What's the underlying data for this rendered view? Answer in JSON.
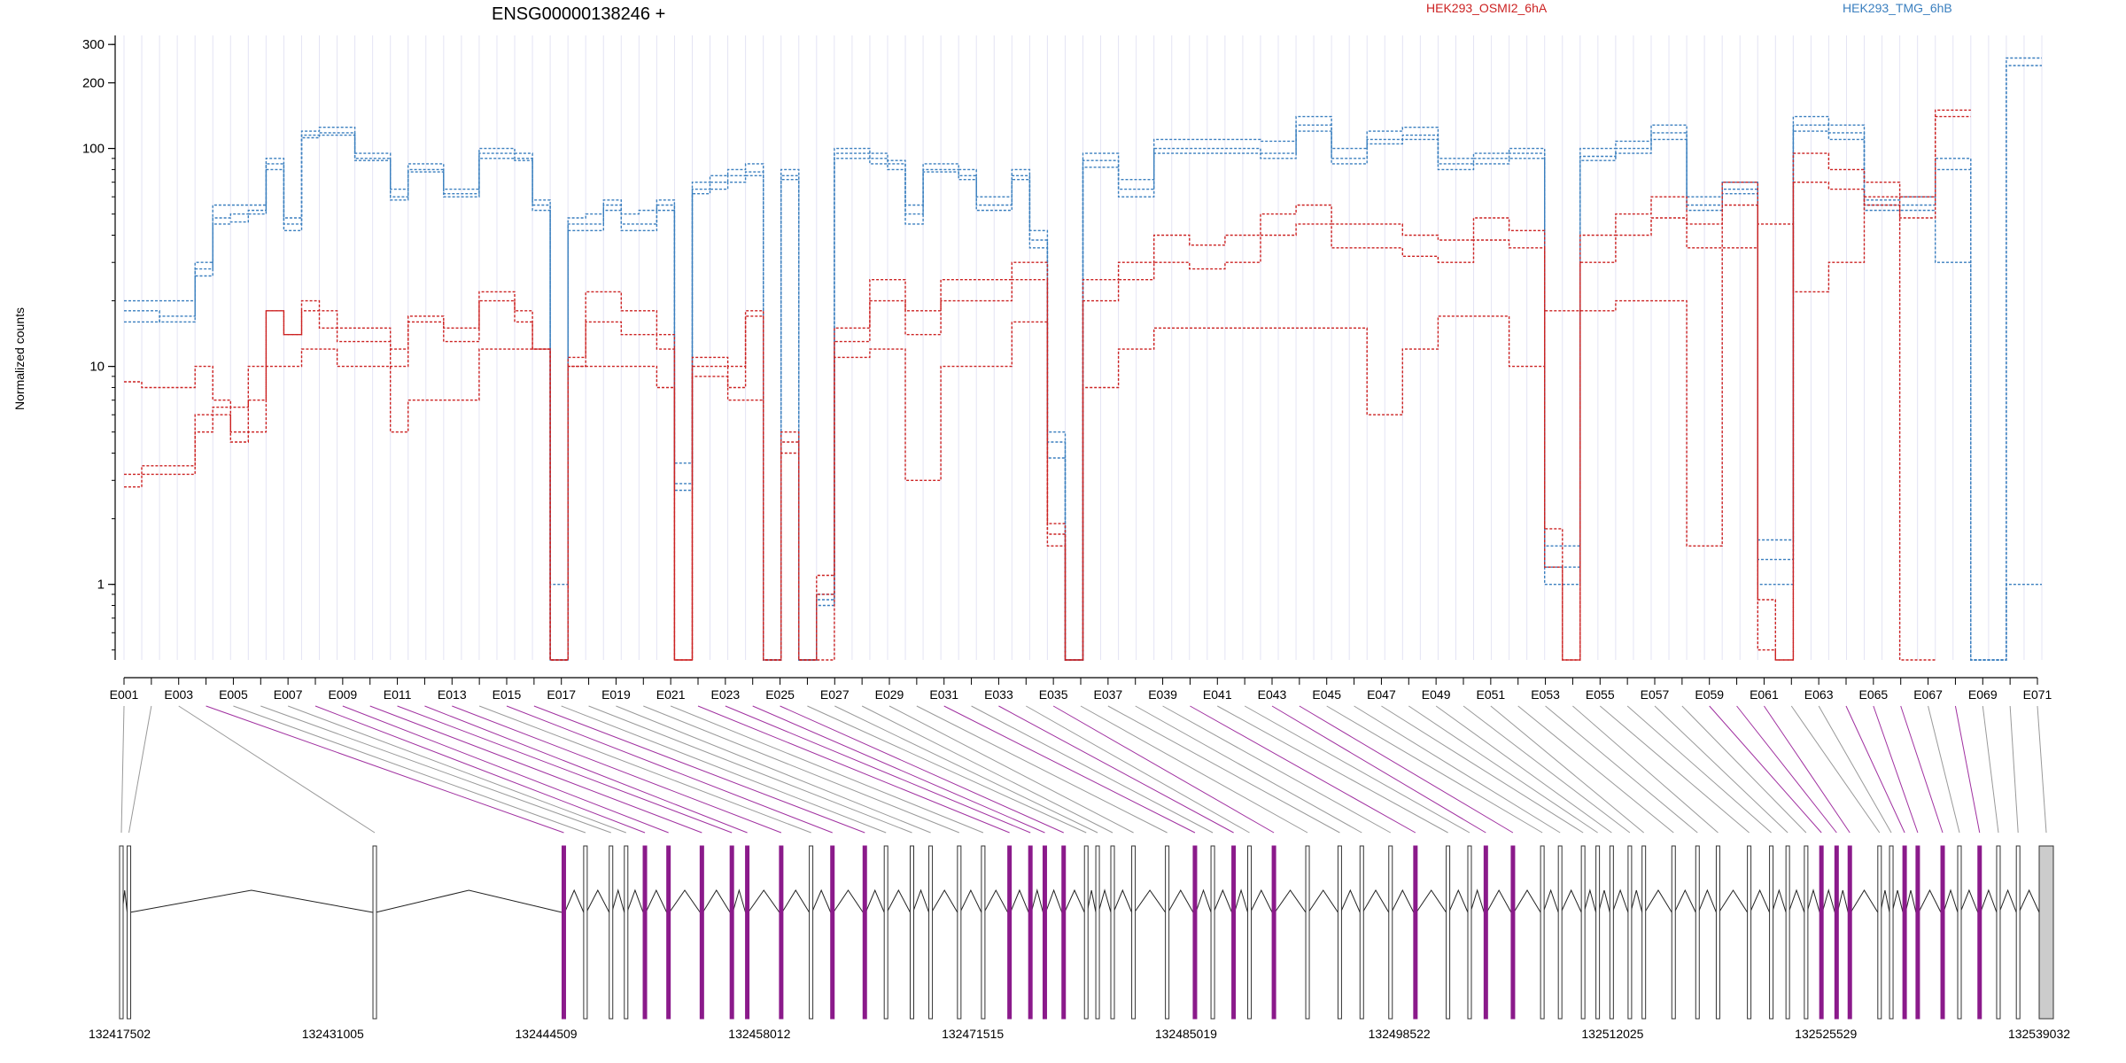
{
  "chart_data": {
    "type": "line",
    "title": "ENSG00000138246 +",
    "ylabel": "Normalized counts",
    "yscale": "log",
    "ylim": [
      0.45,
      330
    ],
    "yticks": [
      1,
      10,
      100,
      200,
      300
    ],
    "ytick_labels": [
      "1",
      "10",
      "100",
      "200",
      "300"
    ],
    "legend": [
      {
        "name": "HEK293_OSMI2_6hA",
        "color": "#cc2222"
      },
      {
        "name": "HEK293_TMG_6hB",
        "color": "#3a7fbf"
      }
    ],
    "exon_labels": [
      "E001",
      "E003",
      "E005",
      "E007",
      "E009",
      "E011",
      "E013",
      "E015",
      "E017",
      "E019",
      "E021",
      "E023",
      "E025",
      "E027",
      "E029",
      "E031",
      "E033",
      "E035",
      "E037",
      "E039",
      "E041",
      "E043",
      "E045",
      "E047",
      "E049",
      "E051",
      "E053",
      "E055",
      "E057",
      "E059",
      "E061",
      "E063",
      "E065",
      "E067",
      "E069",
      "E071"
    ],
    "genomic_ticks": [
      "132417502",
      "132431005",
      "132444509",
      "132458012",
      "132471515",
      "132485019",
      "132498522",
      "132512025",
      "132525529",
      "132539032"
    ],
    "highlight_color": "#8b1a8b",
    "series": [
      {
        "group": "HEK293_TMG_6hB",
        "color": "#3a7fbf",
        "values": [
          20,
          20,
          20,
          20,
          30,
          55,
          55,
          55,
          90,
          48,
          120,
          125,
          125,
          95,
          95,
          65,
          85,
          85,
          65,
          65,
          100,
          100,
          95,
          58,
          1,
          48,
          50,
          58,
          50,
          52,
          58,
          3.6,
          70,
          75,
          80,
          85,
          0.45,
          80,
          0.45,
          0.9,
          100,
          100,
          95,
          88,
          55,
          85,
          85,
          80,
          60,
          60,
          80,
          42,
          5,
          0.45,
          95,
          95,
          72,
          72,
          110,
          110,
          110,
          110,
          110,
          110,
          108,
          108,
          140,
          140,
          100,
          100,
          120,
          120,
          125,
          125,
          90,
          90,
          95,
          95,
          100,
          100,
          1.5,
          1.5,
          100,
          100,
          108,
          108,
          128,
          128,
          60,
          60,
          70,
          70,
          1.6,
          1.6,
          140,
          140,
          128,
          128,
          58,
          58,
          60,
          60,
          90,
          90,
          0.45,
          0.45,
          260,
          260
        ]
      },
      {
        "group": "HEK293_TMG_6hB",
        "color": "#3a7fbf",
        "values": [
          16,
          16,
          17,
          17,
          28,
          48,
          50,
          52,
          85,
          42,
          115,
          118,
          118,
          90,
          90,
          60,
          80,
          80,
          62,
          62,
          95,
          95,
          90,
          55,
          0.45,
          45,
          45,
          55,
          45,
          45,
          55,
          2.9,
          65,
          70,
          75,
          78,
          0.45,
          75,
          0.45,
          0.85,
          95,
          95,
          90,
          85,
          50,
          80,
          80,
          75,
          55,
          55,
          75,
          38,
          4.5,
          0.45,
          88,
          88,
          65,
          65,
          100,
          100,
          100,
          100,
          100,
          100,
          95,
          95,
          128,
          128,
          90,
          90,
          110,
          110,
          115,
          115,
          85,
          85,
          90,
          90,
          95,
          95,
          1.2,
          1.2,
          92,
          92,
          100,
          100,
          118,
          118,
          55,
          55,
          65,
          65,
          1.3,
          1.3,
          128,
          128,
          118,
          118,
          55,
          55,
          55,
          55,
          80,
          80,
          0.45,
          0.45,
          240,
          240
        ]
      },
      {
        "group": "HEK293_TMG_6hB",
        "color": "#3a7fbf",
        "values": [
          18,
          18,
          16,
          16,
          26,
          45,
          46,
          50,
          80,
          45,
          112,
          115,
          115,
          88,
          88,
          58,
          78,
          78,
          60,
          60,
          90,
          90,
          88,
          52,
          0.45,
          42,
          42,
          52,
          42,
          42,
          52,
          2.7,
          62,
          65,
          70,
          75,
          0.45,
          72,
          0.45,
          0.8,
          90,
          90,
          85,
          80,
          45,
          78,
          78,
          72,
          52,
          52,
          72,
          35,
          3.8,
          0.45,
          82,
          82,
          60,
          60,
          95,
          95,
          95,
          95,
          95,
          95,
          90,
          90,
          120,
          120,
          85,
          85,
          105,
          105,
          110,
          110,
          80,
          80,
          85,
          85,
          90,
          90,
          1.0,
          1.0,
          88,
          88,
          95,
          95,
          110,
          110,
          52,
          52,
          62,
          62,
          1.0,
          1.0,
          120,
          120,
          110,
          110,
          52,
          52,
          52,
          52,
          30,
          30,
          0.45,
          0.45,
          1.0,
          1.0
        ]
      },
      {
        "group": "HEK293_OSMI2_6hA",
        "color": "#cc2222",
        "values": [
          8.5,
          8,
          8,
          8,
          10,
          7,
          6.5,
          7,
          18,
          14,
          20,
          18,
          15,
          15,
          15,
          12,
          17,
          17,
          15,
          15,
          22,
          22,
          18,
          12,
          0.45,
          11,
          22,
          22,
          18,
          18,
          14,
          0.45,
          11,
          11,
          10,
          18,
          0.45,
          5,
          0.45,
          1.1,
          15,
          15,
          25,
          25,
          18,
          18,
          25,
          25,
          25,
          25,
          30,
          30,
          1.9,
          0.45,
          25,
          25,
          30,
          30,
          40,
          40,
          36,
          36,
          40,
          40,
          50,
          50,
          55,
          55,
          45,
          45,
          45,
          45,
          40,
          40,
          38,
          38,
          48,
          48,
          42,
          42,
          1.8,
          0.45,
          40,
          40,
          50,
          50,
          60,
          60,
          45,
          45,
          70,
          70,
          0.85,
          0.45,
          95,
          95,
          80,
          80,
          70,
          70,
          60,
          60,
          150,
          150
        ]
      },
      {
        "group": "HEK293_OSMI2_6hA",
        "color": "#cc2222",
        "values": [
          3.2,
          3.5,
          3.5,
          3.5,
          6,
          6.5,
          4.5,
          10,
          18,
          14,
          18,
          15,
          13,
          13,
          13,
          10,
          16,
          16,
          13,
          13,
          20,
          20,
          16,
          12,
          0.45,
          10,
          16,
          16,
          14,
          14,
          12,
          0.45,
          10,
          10,
          8,
          17,
          0.45,
          4.5,
          0.45,
          0.9,
          13,
          13,
          20,
          20,
          14,
          14,
          20,
          20,
          20,
          20,
          25,
          25,
          1.7,
          0.45,
          20,
          20,
          25,
          25,
          30,
          30,
          28,
          28,
          30,
          30,
          40,
          40,
          45,
          45,
          35,
          35,
          35,
          35,
          32,
          32,
          30,
          30,
          38,
          38,
          35,
          35,
          1.2,
          0.45,
          30,
          30,
          40,
          40,
          48,
          48,
          35,
          35,
          55,
          55,
          0.5,
          0.45,
          70,
          70,
          65,
          65,
          55,
          55,
          48,
          48,
          140,
          140
        ]
      },
      {
        "group": "HEK293_OSMI2_6hA",
        "color": "#cc2222",
        "values": [
          2.8,
          3.2,
          3.2,
          3.2,
          5,
          6,
          5,
          5,
          10,
          10,
          12,
          12,
          10,
          10,
          10,
          5,
          7,
          7,
          7,
          7,
          12,
          12,
          12,
          12,
          0.45,
          10,
          10,
          10,
          10,
          10,
          8,
          0.45,
          9,
          9,
          7,
          7,
          0.45,
          4,
          0.45,
          0.45,
          11,
          11,
          12,
          12,
          3,
          3,
          10,
          10,
          10,
          10,
          16,
          16,
          1.5,
          0.45,
          8,
          8,
          12,
          12,
          15,
          15,
          15,
          15,
          15,
          15,
          15,
          15,
          15,
          15,
          15,
          15,
          6,
          6,
          12,
          12,
          17,
          17,
          17,
          17,
          10,
          10,
          18,
          18,
          18,
          18,
          20,
          20,
          20,
          20,
          1.5,
          1.5,
          35,
          35,
          45,
          45,
          22,
          22,
          30,
          30,
          60,
          60,
          0.45,
          0.45
        ]
      }
    ]
  }
}
